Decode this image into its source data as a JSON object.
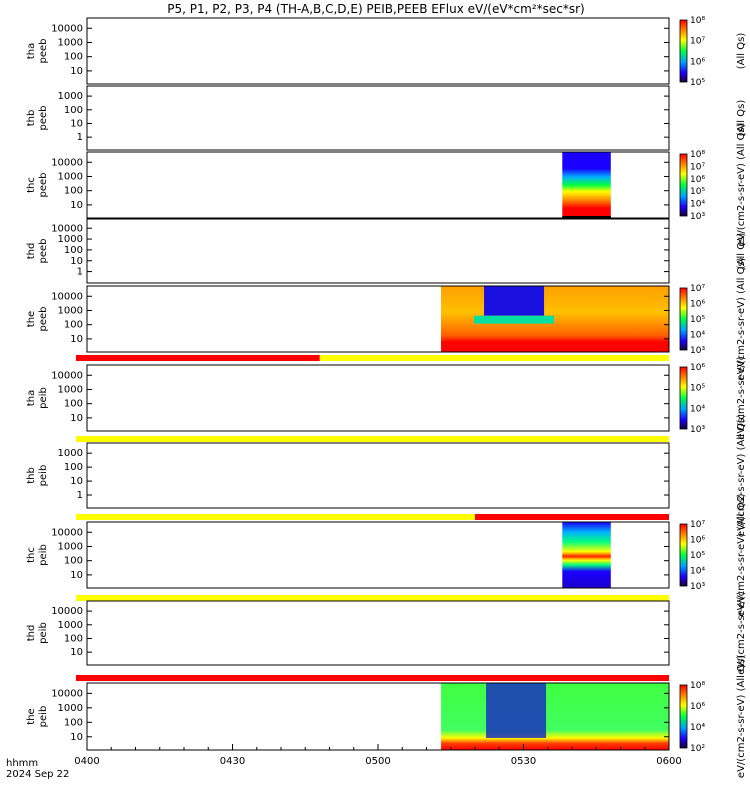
{
  "chart_data": {
    "type": "heatmap",
    "title": "P5, P1, P2, P3, P4 (TH-A,B,C,D,E) PEIB,PEEB EFlux eV/(eV*cm²*sec*sr)",
    "x_time_label": "hhmm",
    "date_label": "2024 Sep 22",
    "x_ticks": [
      "0400",
      "0430",
      "0500",
      "0530",
      "0600"
    ],
    "x_range": [
      "0400",
      "0600"
    ],
    "panels": [
      {
        "id": "tha_peeb",
        "probe": "tha",
        "instrument": "peeb",
        "yticks": [
          "10000",
          "1000",
          "100",
          "10"
        ],
        "ylog": true,
        "colorbar": {
          "label": "(All Qs)",
          "ticks": [
            "10⁸",
            "10⁷",
            "10⁶",
            "10⁵"
          ]
        },
        "coverage": []
      },
      {
        "id": "thb_peeb",
        "probe": "thb",
        "instrument": "peeb",
        "yticks": [
          "1000",
          "100",
          "10",
          "1"
        ],
        "ylog": true,
        "colorbar": {
          "label": "(All Qs)",
          "ticks": []
        },
        "coverage": []
      },
      {
        "id": "thc_peeb",
        "probe": "thc",
        "instrument": "peeb",
        "yticks": [
          "10000",
          "1000",
          "100",
          "10"
        ],
        "ylog": true,
        "colorbar": {
          "label": "eV/(cm2-s-sr-eV) (All Qs)",
          "ticks": [
            "10⁸",
            "10⁷",
            "10⁶",
            "10⁵",
            "10⁴",
            "10³"
          ]
        },
        "coverage": [
          [
            "0538",
            "0548"
          ]
        ]
      },
      {
        "id": "thd_peeb",
        "probe": "thd",
        "instrument": "peeb",
        "yticks": [
          "10000",
          "1000",
          "100",
          "10",
          "1"
        ],
        "ylog": true,
        "colorbar": {
          "label": "(All Qs)",
          "ticks": []
        },
        "coverage": []
      },
      {
        "id": "the_peeb",
        "probe": "the",
        "instrument": "peeb",
        "yticks": [
          "10000",
          "1000",
          "100",
          "10"
        ],
        "ylog": true,
        "colorbar": {
          "label": "eV/(cm2-s-sr-eV) (All Qs)",
          "ticks": [
            "10⁷",
            "10⁶",
            "10⁵",
            "10⁴",
            "10³"
          ]
        },
        "coverage": [
          [
            "0513",
            "0600"
          ]
        ],
        "status_bar": [
          {
            "from": "0400",
            "to": "0448",
            "state": "red"
          },
          {
            "from": "0448",
            "to": "0600",
            "state": "yellow"
          }
        ]
      },
      {
        "id": "tha_peib",
        "probe": "tha",
        "instrument": "peib",
        "yticks": [
          "10000",
          "1000",
          "100",
          "10"
        ],
        "ylog": true,
        "colorbar": {
          "label": "eV/(cm2-s-sr-eV)",
          "ticks": [
            "10⁶",
            "10⁵",
            "10⁴",
            "10³"
          ]
        },
        "coverage": [],
        "status_bar": [
          {
            "from": "0400",
            "to": "0600",
            "state": "yellow"
          }
        ]
      },
      {
        "id": "thb_peib",
        "probe": "thb",
        "instrument": "peib",
        "yticks": [
          "1000",
          "100",
          "10",
          "1"
        ],
        "ylog": true,
        "colorbar": {
          "label": "eV/(cm2-s-sr-eV) (All Qs)",
          "ticks": []
        },
        "coverage": [],
        "status_bar": [
          {
            "from": "0400",
            "to": "0520",
            "state": "yellow"
          },
          {
            "from": "0520",
            "to": "0600",
            "state": "red"
          }
        ]
      },
      {
        "id": "thc_peib",
        "probe": "thc",
        "instrument": "peib",
        "yticks": [
          "10000",
          "1000",
          "100",
          "10"
        ],
        "ylog": true,
        "colorbar": {
          "label": "eV/(cm2-s-sr-eV) (All Qs)",
          "ticks": [
            "10⁷",
            "10⁶",
            "10⁵",
            "10⁴",
            "10³"
          ]
        },
        "coverage": [
          [
            "0538",
            "0548"
          ]
        ],
        "status_bar": [
          {
            "from": "0400",
            "to": "0600",
            "state": "yellow"
          }
        ]
      },
      {
        "id": "thd_peib",
        "probe": "thd",
        "instrument": "peib",
        "yticks": [
          "10000",
          "1000",
          "100",
          "10"
        ],
        "ylog": true,
        "colorbar": {
          "label": "eV/(cm2-s-sr-eV)",
          "ticks": []
        },
        "coverage": [],
        "status_bar": [
          {
            "from": "0400",
            "to": "0600",
            "state": "red"
          }
        ]
      },
      {
        "id": "the_peib",
        "probe": "the",
        "instrument": "peib",
        "yticks": [
          "10000",
          "1000",
          "100",
          "10"
        ],
        "ylog": true,
        "colorbar": {
          "label": "eV/(cm2-s-sr-eV) (All Qs)",
          "ticks": [
            "10⁸",
            "10⁶",
            "10⁴",
            "10²"
          ]
        },
        "coverage": [
          [
            "0513",
            "0600"
          ]
        ]
      }
    ]
  }
}
